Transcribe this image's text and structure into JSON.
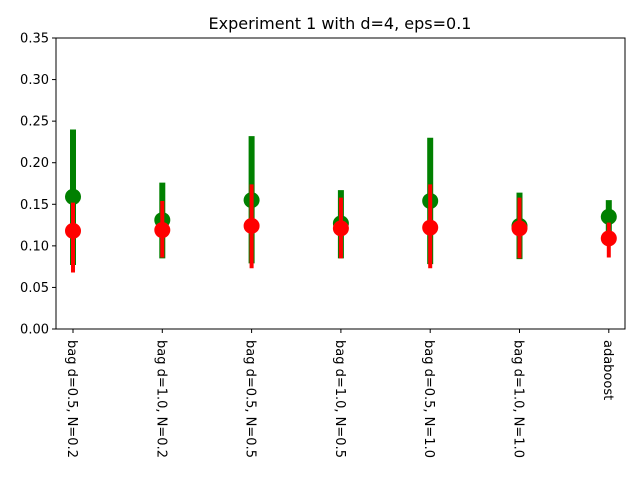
{
  "chart_data": {
    "type": "scatter",
    "title": "Experiment 1 with d=4, eps=0.1",
    "xlabel": "",
    "ylabel": "",
    "ylim": [
      0,
      0.35
    ],
    "yticks": [
      "0.00",
      "0.05",
      "0.10",
      "0.15",
      "0.20",
      "0.25",
      "0.30",
      "0.35"
    ],
    "categories": [
      "bag d=0.5, N=0.2",
      "bag d=1.0, N=0.2",
      "bag d=0.5, N=0.5",
      "bag d=1.0, N=0.5",
      "bag d=0.5, N=1.0",
      "bag d=1.0, N=1.0",
      "adaboost"
    ],
    "grid": false,
    "legend": "none",
    "series": [
      {
        "color": "#008000",
        "values": [
          0.159,
          0.131,
          0.155,
          0.127,
          0.154,
          0.124,
          0.135
        ],
        "lower": [
          0.077,
          0.085,
          0.079,
          0.085,
          0.078,
          0.084,
          0.11
        ],
        "upper": [
          0.24,
          0.176,
          0.232,
          0.167,
          0.23,
          0.164,
          0.155
        ]
      },
      {
        "color": "#ff0000",
        "values": [
          0.118,
          0.119,
          0.124,
          0.121,
          0.122,
          0.121,
          0.109
        ],
        "lower": [
          0.068,
          0.086,
          0.073,
          0.085,
          0.073,
          0.085,
          0.086
        ],
        "upper": [
          0.152,
          0.154,
          0.174,
          0.158,
          0.174,
          0.158,
          0.128
        ]
      }
    ]
  }
}
